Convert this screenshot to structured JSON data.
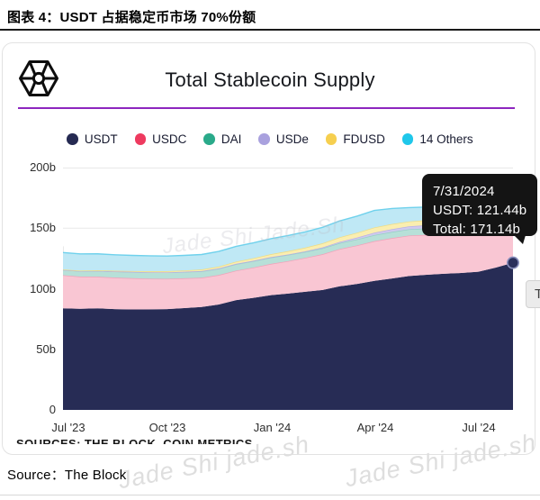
{
  "page": {
    "header_title": "图表 4：USDT 占据稳定币市场 70%份额",
    "source_label": "Source：The Block",
    "clipped_sources_text": "SOURCES: THE BLOCK, COIN METRICS",
    "watermark_mid": "Jade Shi Jade.Sh",
    "watermark_bottom_left": "Jade Shi jade.sh",
    "watermark_bottom_right": "Jade Shi jade.sh"
  },
  "card": {
    "title": "Total Stablecoin Supply",
    "accent_color": "#8d26bf",
    "truncated_button_label": "To"
  },
  "tooltip": {
    "date": "7/31/2024",
    "usdt_line": "USDT: 121.44b",
    "total_line": "Total: 171.14b",
    "bg_color": "#141414"
  },
  "chart_data": {
    "type": "area",
    "stacked": true,
    "title": "Total Stablecoin Supply",
    "legend_position": "top-center",
    "grid": true,
    "ylim": [
      0,
      200
    ],
    "y_ticks": [
      {
        "label": "0",
        "value": 0
      },
      {
        "label": "50b",
        "value": 50
      },
      {
        "label": "100b",
        "value": 100
      },
      {
        "label": "150b",
        "value": 150
      },
      {
        "label": "200b",
        "value": 200
      }
    ],
    "x_ticks": [
      {
        "label": "Jul '23",
        "t": 0.012
      },
      {
        "label": "Oct '23",
        "t": 0.232
      },
      {
        "label": "Jan '24",
        "t": 0.465
      },
      {
        "label": "Apr '24",
        "t": 0.694
      },
      {
        "label": "Jul '24",
        "t": 0.924
      }
    ],
    "x_range": [
      "7/1/2023",
      "7/31/2024"
    ],
    "x": [
      0,
      0.038,
      0.077,
      0.115,
      0.154,
      0.192,
      0.231,
      0.269,
      0.308,
      0.346,
      0.385,
      0.423,
      0.462,
      0.5,
      0.538,
      0.577,
      0.615,
      0.654,
      0.692,
      0.731,
      0.769,
      0.808,
      0.846,
      0.885,
      0.923,
      0.962,
      1
    ],
    "series": [
      {
        "name": "USDT",
        "color": "#252a52",
        "fill": "#272c55",
        "edge": "#272c55",
        "values": [
          83.8,
          83.5,
          83.8,
          83.2,
          82.9,
          83.0,
          83.2,
          84.0,
          84.9,
          87.0,
          90.6,
          92.5,
          94.7,
          96.0,
          97.5,
          99.0,
          102.0,
          104.0,
          106.5,
          108.5,
          110.5,
          111.5,
          112.4,
          113.0,
          114.0,
          117.5,
          121.44
        ]
      },
      {
        "name": "USDC",
        "color": "#ee3a5f",
        "fill": "#f9c6d3",
        "edge": "#f2a0b9",
        "values": [
          27.4,
          26.5,
          26.1,
          26.0,
          25.8,
          25.3,
          25.0,
          24.6,
          24.2,
          24.3,
          24.4,
          25.0,
          25.8,
          26.8,
          28.0,
          29.5,
          30.8,
          31.8,
          32.8,
          33.3,
          33.4,
          33.0,
          32.6,
          32.8,
          33.2,
          33.0,
          31.2
        ]
      },
      {
        "name": "DAI",
        "color": "#2aaa8a",
        "fill": "#b7e0d8",
        "edge": "#95d1c5",
        "values": [
          4.4,
          4.6,
          4.9,
          5.1,
          5.2,
          5.3,
          5.3,
          5.3,
          5.3,
          5.3,
          5.3,
          5.3,
          5.3,
          5.1,
          4.9,
          4.9,
          4.9,
          5.0,
          5.0,
          5.1,
          5.2,
          5.3,
          5.3,
          5.3,
          5.3,
          5.3,
          5.2
        ]
      },
      {
        "name": "USDe",
        "color": "#a9a1de",
        "fill": "#cfcaee",
        "edge": "#b6aee6",
        "values": [
          0,
          0,
          0,
          0,
          0,
          0,
          0,
          0.1,
          0.2,
          0.2,
          0.3,
          0.3,
          0.3,
          0.4,
          0.5,
          0.7,
          1.0,
          1.5,
          2.0,
          2.3,
          2.4,
          2.6,
          3.0,
          3.2,
          3.3,
          3.4,
          3.3
        ]
      },
      {
        "name": "FDUSD",
        "color": "#f6cf4f",
        "fill": "#faeeb0",
        "edge": "#eedc83",
        "values": [
          0.3,
          0.35,
          0.4,
          0.55,
          0.7,
          0.85,
          1.0,
          1.1,
          1.25,
          1.5,
          1.8,
          2.1,
          2.4,
          2.7,
          3.0,
          3.4,
          3.8,
          4.0,
          4.3,
          4.2,
          4.0,
          4.2,
          4.5,
          4.6,
          4.8,
          4.6,
          4.3
        ]
      },
      {
        "name": "14 Others",
        "color": "#1fc7ea",
        "fill": "#bfe8f5",
        "edge": "#6fd1ec",
        "values": [
          14.0,
          13.8,
          13.6,
          13.2,
          12.9,
          12.7,
          12.5,
          12.4,
          12.4,
          12.5,
          12.6,
          12.7,
          12.8,
          12.9,
          13.0,
          13.2,
          13.5,
          13.7,
          14.0,
          12.8,
          11.5,
          10.8,
          10.0,
          9.6,
          9.2,
          7.8,
          5.7
        ]
      }
    ],
    "marker": {
      "series": "USDT",
      "t": 1,
      "value": 121.44,
      "fill": "#2a2f5b",
      "ring": "#8a8fbc"
    }
  }
}
